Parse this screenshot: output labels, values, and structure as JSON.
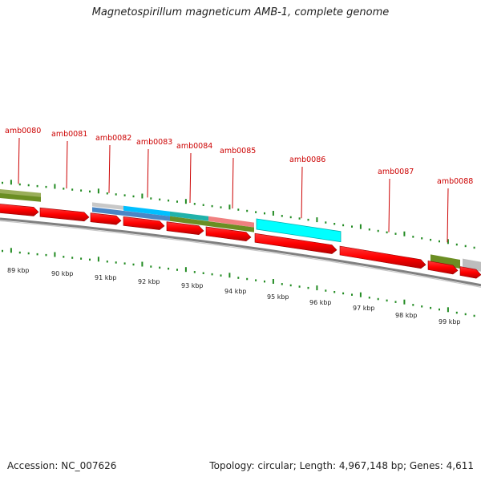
{
  "title": "Magnetospirillum magneticum AMB-1, complete genome",
  "accession": "Accession: NC_007626",
  "topology": "Topology: circular; Length: 4,967,148 bp; Genes: 4,611",
  "colors": {
    "gene_label": "#cc0000",
    "cds": "#ff0000",
    "tick": "#228b22",
    "backbone": "#808080"
  },
  "gene_labels": [
    "amb0080",
    "amb0081",
    "amb0082",
    "amb0083",
    "amb0084",
    "amb0085",
    "amb0086",
    "amb0087",
    "amb0088"
  ],
  "kbp_labels": [
    "89 kbp",
    "90 kbp",
    "91 kbp",
    "92 kbp",
    "93 kbp",
    "94 kbp",
    "95 kbp",
    "96 kbp",
    "97 kbp",
    "98 kbp",
    "99 kbp"
  ]
}
